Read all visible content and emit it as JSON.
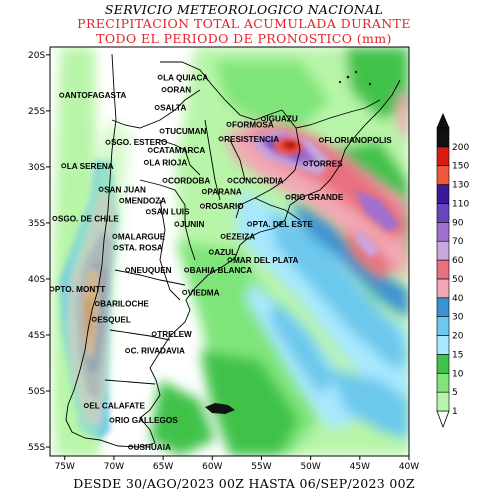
{
  "title": {
    "line1": "SERVICIO METEOROLOGICO NACIONAL",
    "line2": "PRECIPITACION TOTAL ACUMULADA DURANTE",
    "line3": "TODO EL PERIODO DE PRONOSTICO (mm)"
  },
  "footer": "DESDE 30/AGO/2023 00Z HASTA 06/SEP/2023 00Z",
  "axes": {
    "lat_labels": [
      "20S",
      "25S",
      "30S",
      "35S",
      "40S",
      "45S",
      "50S",
      "55S"
    ],
    "lon_labels": [
      "75W",
      "70W",
      "65W",
      "60W",
      "55W",
      "50W",
      "45W",
      "40W"
    ]
  },
  "legend": {
    "levels": [
      "1",
      "5",
      "10",
      "15",
      "20",
      "30",
      "40",
      "50",
      "60",
      "70",
      "90",
      "110",
      "130",
      "150",
      "200"
    ],
    "colors": [
      "#b8f5a8",
      "#7fe57a",
      "#3fc24a",
      "#a8e8ff",
      "#6cc8ec",
      "#3c92d2",
      "#f2a8b4",
      "#e9707e",
      "#c9a8e0",
      "#a070cf",
      "#6a45c0",
      "#3a1a9a",
      "#f05a3c",
      "#d81a10",
      "#111111"
    ]
  },
  "cities": [
    {
      "name": "LA QUIACA",
      "lon": -65.0,
      "lat": -22.0
    },
    {
      "name": "ORAN",
      "lon": -64.6,
      "lat": -23.1
    },
    {
      "name": "ANTOFAGASTA",
      "lon": -75.0,
      "lat": -23.6
    },
    {
      "name": "SALTA",
      "lon": -65.3,
      "lat": -24.7
    },
    {
      "name": "IGUAZU",
      "lon": -54.5,
      "lat": -25.7
    },
    {
      "name": "FORMOSA",
      "lon": -58.0,
      "lat": -26.2
    },
    {
      "name": "TUCUMAN",
      "lon": -64.8,
      "lat": -26.8
    },
    {
      "name": "RESISTENCIA",
      "lon": -58.8,
      "lat": -27.5
    },
    {
      "name": "FLORIANOPOLIS",
      "lon": -48.6,
      "lat": -27.6
    },
    {
      "name": "SGO. ESTERO",
      "lon": -70.3,
      "lat": -27.8
    },
    {
      "name": "CATAMARCA",
      "lon": -66.0,
      "lat": -28.5
    },
    {
      "name": "LA SERENA",
      "lon": -74.8,
      "lat": -29.9
    },
    {
      "name": "LA RIOJA",
      "lon": -66.4,
      "lat": -29.6
    },
    {
      "name": "TORRES",
      "lon": -50.2,
      "lat": -29.7
    },
    {
      "name": "CORDOBA",
      "lon": -64.5,
      "lat": -31.2
    },
    {
      "name": "CONCORDIA",
      "lon": -57.9,
      "lat": -31.2
    },
    {
      "name": "SAN JUAN",
      "lon": -71.0,
      "lat": -32.0
    },
    {
      "name": "PARANA",
      "lon": -60.5,
      "lat": -32.2
    },
    {
      "name": "RIO GRANDE",
      "lon": -52.0,
      "lat": -32.7
    },
    {
      "name": "MENDOZA",
      "lon": -68.9,
      "lat": -33.0
    },
    {
      "name": "ROSARIO",
      "lon": -60.7,
      "lat": -33.5
    },
    {
      "name": "SAN LUIS",
      "lon": -66.2,
      "lat": -34.0
    },
    {
      "name": "SGO. DE CHILE",
      "lon": -75.7,
      "lat": -34.6
    },
    {
      "name": "JUNIN",
      "lon": -63.3,
      "lat": -35.1
    },
    {
      "name": "PTA. DEL ESTE",
      "lon": -55.9,
      "lat": -35.1
    },
    {
      "name": "MALARGUE",
      "lon": -69.6,
      "lat": -36.2
    },
    {
      "name": "EZEIZA",
      "lon": -58.6,
      "lat": -36.2
    },
    {
      "name": "STA. ROSA",
      "lon": -69.5,
      "lat": -37.2
    },
    {
      "name": "AZUL",
      "lon": -59.8,
      "lat": -37.6
    },
    {
      "name": "MAR DEL PLATA",
      "lon": -57.9,
      "lat": -38.3
    },
    {
      "name": "NEUQUEN",
      "lon": -68.3,
      "lat": -39.2
    },
    {
      "name": "BAHIA BLANCA",
      "lon": -62.3,
      "lat": -39.2
    },
    {
      "name": "PTO. MONTT",
      "lon": -76.0,
      "lat": -40.9
    },
    {
      "name": "VIEDMA",
      "lon": -62.5,
      "lat": -41.2
    },
    {
      "name": "BARILOCHE",
      "lon": -71.4,
      "lat": -42.2
    },
    {
      "name": "ESQUEL",
      "lon": -71.7,
      "lat": -43.6
    },
    {
      "name": "TRELEW",
      "lon": -65.6,
      "lat": -44.9
    },
    {
      "name": "C. RIVADAVIA",
      "lon": -68.3,
      "lat": -46.4
    },
    {
      "name": "EL CALAFATE",
      "lon": -72.5,
      "lat": -51.3
    },
    {
      "name": "RIO GALLEGOS",
      "lon": -69.9,
      "lat": -52.6
    },
    {
      "name": "USHUAIA",
      "lon": -68.0,
      "lat": -55.0
    }
  ]
}
